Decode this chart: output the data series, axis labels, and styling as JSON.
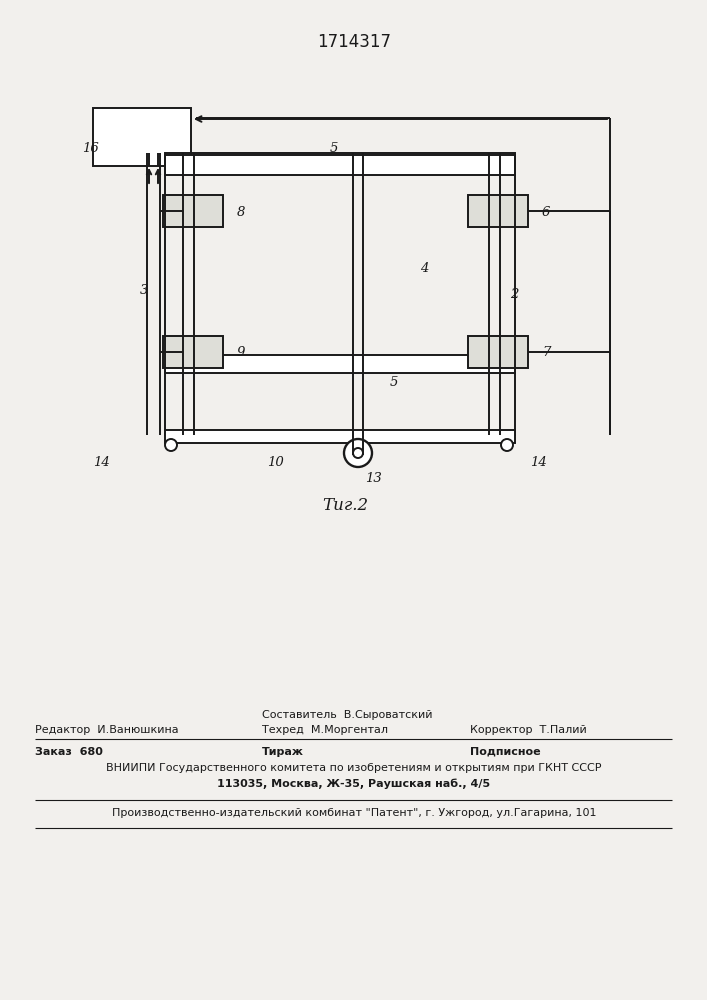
{
  "title": "1714317",
  "fig_label": "Τиг.2",
  "background_color": "#f2f0ed",
  "line_color": "#1a1a1a",
  "text_color": "#1a1a1a",
  "footer_sostavitel": "Составитель  В.Сыроватский",
  "footer_redaktor": "Редактор  И.Ванюшкина",
  "footer_tekhred": "Техред  М.Моргентал",
  "footer_korrektor": "Корректор  Т.Палий",
  "footer_zakaz": "Заказ  680",
  "footer_tirazh": "Тираж",
  "footer_podpisnoe": "Подписное",
  "footer_vniiipi": "ВНИИПИ Государственного комитета по изобретениям и открытиям при ГКНТ СССР",
  "footer_address": "113035, Москва, Ж-35, Раушская наб., 4/5",
  "footer_patent": "Производственно-издательский комбинат \"Патент\", г. Ужгород, ул.Гагарина, 101"
}
